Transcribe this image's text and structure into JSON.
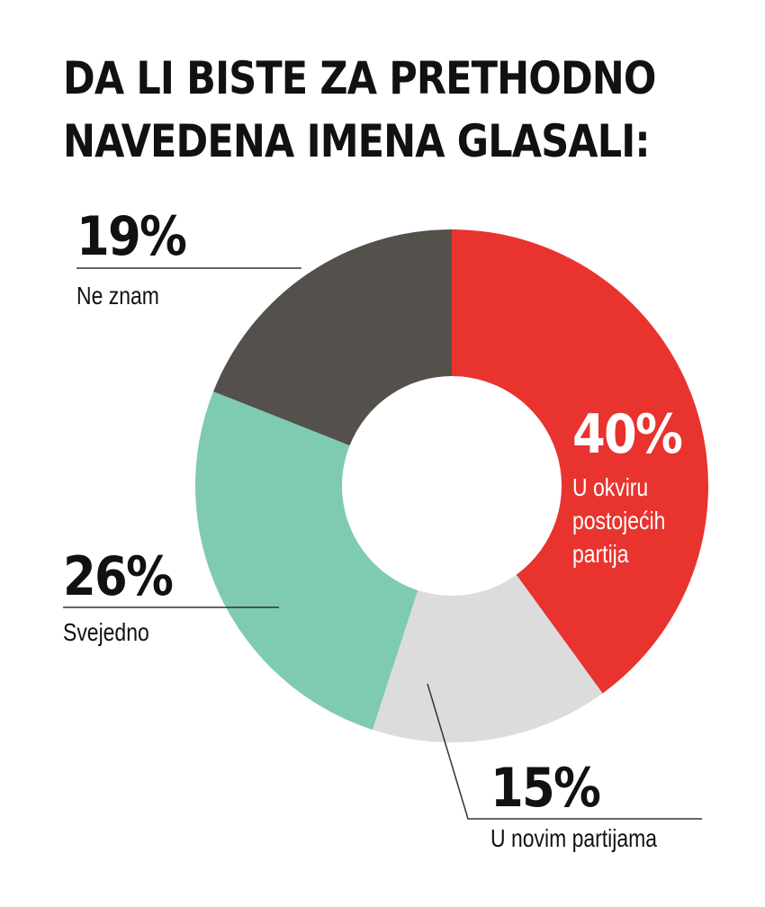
{
  "title_lines": [
    "DA LI BISTE ZA PRETHODNO",
    "NAVEDENA IMENA GLASALI:"
  ],
  "chart_data": {
    "type": "pie",
    "donut": true,
    "slices": [
      {
        "label_lines": [
          "U okviru",
          "postojećih",
          "partija"
        ],
        "pct_label": "40%",
        "value": 40,
        "color": "#e8332e"
      },
      {
        "label_lines": [
          "U novim partijama"
        ],
        "pct_label": "15%",
        "value": 15,
        "color": "#dcdcdc"
      },
      {
        "label_lines": [
          "Svejedno"
        ],
        "pct_label": "26%",
        "value": 26,
        "color": "#7fcbb1"
      },
      {
        "label_lines": [
          "Ne znam"
        ],
        "pct_label": "19%",
        "value": 19,
        "color": "#54504c"
      }
    ]
  }
}
